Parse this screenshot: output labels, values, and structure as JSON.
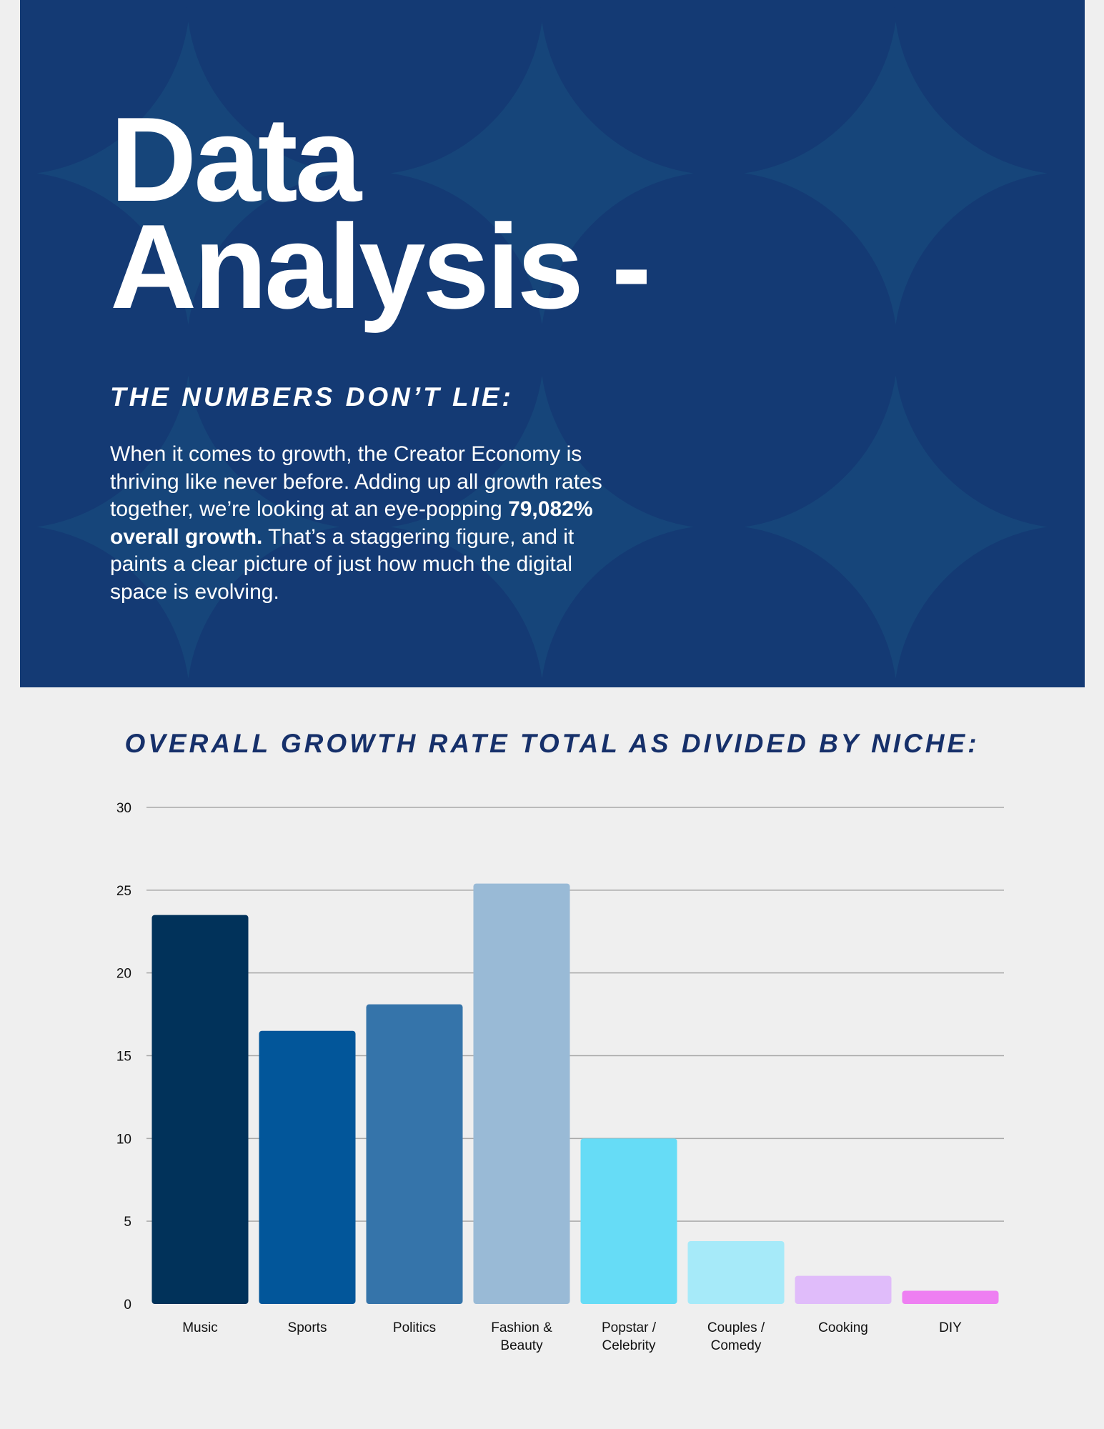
{
  "header": {
    "title_line1": "Data",
    "title_line2": "Analysis -",
    "subtitle": "THE NUMBERS DON’T LIE:",
    "body_before": "When it comes to growth, the Creator Economy is thriving like never before. Adding up all growth rates together, we’re looking at an eye-popping ",
    "body_bold": "79,082% overall growth.",
    "body_after": " That’s a staggering figure, and it paints a clear picture of just how much the digital space is evolving."
  },
  "colors": {
    "hero_background": "#16457a",
    "hero_pattern": "#143a74",
    "chart_title": "#16306a"
  },
  "chart_data": {
    "type": "bar",
    "title": "OVERALL GROWTH RATE TOTAL AS DIVIDED BY NICHE:",
    "xlabel": "",
    "ylabel": "",
    "ylim": [
      0,
      30
    ],
    "yticks": [
      0,
      5,
      10,
      15,
      20,
      25,
      30
    ],
    "grid": true,
    "categories": [
      [
        "Music"
      ],
      [
        "Sports"
      ],
      [
        "Politics"
      ],
      [
        "Fashion &",
        "Beauty"
      ],
      [
        "Popstar /",
        "Celebrity"
      ],
      [
        "Couples /",
        "Comedy"
      ],
      [
        "Cooking"
      ],
      [
        "DIY"
      ]
    ],
    "values": [
      23.5,
      16.5,
      18.1,
      25.4,
      10.0,
      3.8,
      1.7,
      0.8
    ],
    "bar_colors": [
      "#01325a",
      "#02569a",
      "#3574aa",
      "#99bad6",
      "#66dcf6",
      "#a6eaf9",
      "#e0bcfa",
      "#ee7ff2"
    ]
  }
}
